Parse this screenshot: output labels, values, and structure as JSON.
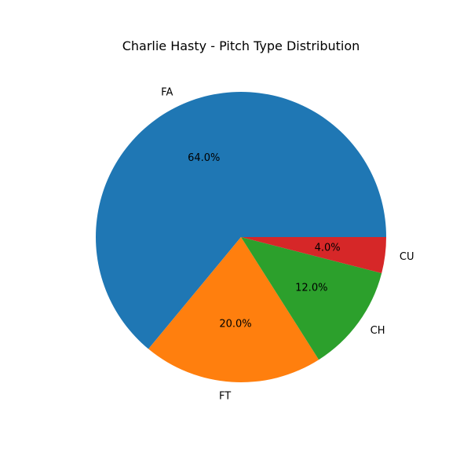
{
  "chart_data": {
    "type": "pie",
    "title": "Charlie Hasty - Pitch Type Distribution",
    "start_angle_deg": 0,
    "direction": "counterclockwise",
    "slices": [
      {
        "label": "FA",
        "value": 64.0,
        "pct_label": "64.0%",
        "color": "#1f77b4"
      },
      {
        "label": "FT",
        "value": 20.0,
        "pct_label": "20.0%",
        "color": "#ff7f0e"
      },
      {
        "label": "CH",
        "value": 12.0,
        "pct_label": "12.0%",
        "color": "#2ca02c"
      },
      {
        "label": "CU",
        "value": 4.0,
        "pct_label": "4.0%",
        "color": "#d62728"
      }
    ]
  }
}
